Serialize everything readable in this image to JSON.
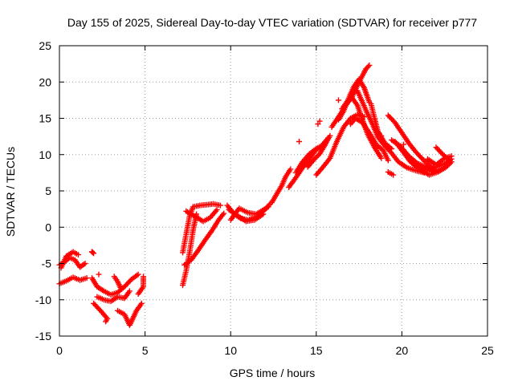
{
  "chart_data": {
    "type": "scatter",
    "title": "Day 155 of 2025, Sidereal Day-to-day VTEC variation (SDTVAR) for receiver p777",
    "xlabel": "GPS time / hours",
    "ylabel": "SDTVAR / TECUs",
    "xlim": [
      0,
      25
    ],
    "ylim": [
      -15,
      25
    ],
    "xticks": [
      0,
      5,
      10,
      15,
      20,
      25
    ],
    "yticks": [
      -15,
      -10,
      -5,
      0,
      5,
      10,
      15,
      20,
      25
    ],
    "grid": true,
    "marker": "plus",
    "series": [
      {
        "color": "#ff0000",
        "tracks": [
          [
            [
              0.0,
              -5.2
            ],
            [
              0.3,
              -4.8
            ],
            [
              0.6,
              -4.2
            ],
            [
              0.9,
              -4.5
            ],
            [
              1.2,
              -5.5
            ],
            [
              1.5,
              -5.0
            ]
          ],
          [
            [
              0.0,
              -7.8
            ],
            [
              0.4,
              -7.4
            ],
            [
              0.8,
              -6.9
            ],
            [
              1.2,
              -7.3
            ],
            [
              1.6,
              -7.0
            ]
          ],
          [
            [
              0.1,
              -5.6
            ],
            [
              0.4,
              -4.0
            ],
            [
              0.8,
              -3.4
            ],
            [
              1.1,
              -3.8
            ]
          ],
          [
            [
              1.9,
              -3.4
            ],
            [
              2.0,
              -3.6
            ]
          ],
          [
            [
              1.9,
              -7.0
            ],
            [
              2.2,
              -8.2
            ],
            [
              2.6,
              -8.8
            ],
            [
              3.0,
              -9.3
            ],
            [
              3.4,
              -9.0
            ],
            [
              3.8,
              -8.2
            ],
            [
              4.2,
              -7.2
            ],
            [
              4.6,
              -6.5
            ]
          ],
          [
            [
              2.0,
              -10.5
            ],
            [
              2.4,
              -11.5
            ],
            [
              2.8,
              -12.6
            ],
            [
              2.7,
              -13.0
            ]
          ],
          [
            [
              2.2,
              -9.6
            ],
            [
              2.6,
              -10.0
            ],
            [
              3.0,
              -10.2
            ],
            [
              3.4,
              -9.6
            ],
            [
              3.8,
              -9.8
            ],
            [
              4.1,
              -8.8
            ]
          ],
          [
            [
              3.2,
              -6.8
            ],
            [
              3.4,
              -7.5
            ],
            [
              3.6,
              -8.5
            ]
          ],
          [
            [
              3.4,
              -11.5
            ],
            [
              3.8,
              -12.0
            ],
            [
              4.1,
              -13.5
            ],
            [
              4.3,
              -12.5
            ],
            [
              4.5,
              -11.5
            ],
            [
              4.8,
              -10.5
            ]
          ],
          [
            [
              4.6,
              -9.2
            ],
            [
              4.9,
              -8.2
            ],
            [
              4.9,
              -6.8
            ]
          ],
          [
            [
              7.2,
              -8.0
            ],
            [
              7.4,
              -6.0
            ],
            [
              7.6,
              -3.5
            ],
            [
              7.8,
              -0.5
            ],
            [
              8.0,
              1.8
            ]
          ],
          [
            [
              7.3,
              -5.2
            ],
            [
              7.7,
              -4.5
            ],
            [
              8.1,
              -3.2
            ],
            [
              8.5,
              -1.8
            ],
            [
              8.9,
              -0.5
            ],
            [
              9.3,
              1.0
            ],
            [
              9.6,
              1.9
            ]
          ],
          [
            [
              7.2,
              -3.5
            ],
            [
              7.4,
              -1.0
            ],
            [
              7.6,
              1.5
            ],
            [
              7.8,
              2.8
            ],
            [
              8.2,
              3.0
            ],
            [
              8.6,
              3.1
            ],
            [
              9.0,
              3.2
            ],
            [
              9.4,
              3.0
            ]
          ],
          [
            [
              7.4,
              2.2
            ],
            [
              7.9,
              1.5
            ],
            [
              8.4,
              0.8
            ],
            [
              8.8,
              1.3
            ],
            [
              9.2,
              2.4
            ]
          ],
          [
            [
              9.8,
              3.0
            ],
            [
              10.2,
              1.8
            ],
            [
              10.6,
              1.2
            ],
            [
              11.0,
              1.0
            ],
            [
              11.5,
              1.4
            ],
            [
              12.0,
              2.4
            ],
            [
              12.3,
              3.2
            ]
          ],
          [
            [
              9.9,
              2.4
            ],
            [
              10.4,
              1.6
            ],
            [
              10.9,
              0.8
            ],
            [
              11.4,
              1.0
            ],
            [
              11.9,
              1.8
            ]
          ],
          [
            [
              10.0,
              1.0
            ],
            [
              10.5,
              2.6
            ],
            [
              11.0,
              2.0
            ],
            [
              11.5,
              1.8
            ],
            [
              12.2,
              2.8
            ]
          ],
          [
            [
              12.4,
              3.4
            ],
            [
              12.7,
              4.6
            ],
            [
              13.0,
              5.8
            ],
            [
              13.2,
              6.9
            ],
            [
              13.5,
              8.0
            ]
          ],
          [
            [
              13.4,
              5.5
            ],
            [
              13.8,
              6.8
            ],
            [
              14.2,
              8.2
            ],
            [
              14.6,
              9.4
            ],
            [
              15.0,
              10.7
            ],
            [
              15.4,
              11.2
            ]
          ],
          [
            [
              13.8,
              7.5
            ],
            [
              14.2,
              9.0
            ],
            [
              14.6,
              10.1
            ],
            [
              15.0,
              10.8
            ],
            [
              15.3,
              11.2
            ],
            [
              15.7,
              12.3
            ]
          ],
          [
            [
              14.5,
              8.3
            ],
            [
              14.9,
              9.4
            ],
            [
              15.2,
              10.1
            ],
            [
              15.5,
              11.3
            ],
            [
              15.8,
              12.6
            ]
          ],
          [
            [
              15.0,
              7.2
            ],
            [
              15.4,
              8.3
            ],
            [
              15.8,
              9.5
            ],
            [
              16.2,
              11.8
            ],
            [
              16.6,
              13.8
            ],
            [
              17.0,
              15.0
            ],
            [
              17.4,
              15.5
            ],
            [
              17.8,
              15.2
            ]
          ],
          [
            [
              15.9,
              13.8
            ],
            [
              16.3,
              15.2
            ],
            [
              16.7,
              16.7
            ],
            [
              17.1,
              18.0
            ],
            [
              17.5,
              20.0
            ],
            [
              17.9,
              21.8
            ],
            [
              18.1,
              22.3
            ]
          ],
          [
            [
              16.3,
              14.8
            ],
            [
              16.6,
              16.0
            ],
            [
              16.9,
              17.8
            ],
            [
              17.2,
              19.4
            ],
            [
              17.5,
              20.4
            ],
            [
              17.8,
              19.2
            ],
            [
              18.1,
              17.2
            ]
          ],
          [
            [
              16.5,
              16.3
            ],
            [
              16.8,
              17.3
            ],
            [
              17.1,
              17.8
            ],
            [
              17.4,
              16.8
            ],
            [
              17.7,
              14.8
            ],
            [
              18.0,
              12.8
            ],
            [
              18.4,
              11.0
            ],
            [
              18.8,
              9.5
            ]
          ],
          [
            [
              17.0,
              14.2
            ],
            [
              17.3,
              15.0
            ],
            [
              17.7,
              14.4
            ],
            [
              18.1,
              13.0
            ],
            [
              18.5,
              11.4
            ],
            [
              18.9,
              10.6
            ],
            [
              19.2,
              9.2
            ]
          ],
          [
            [
              17.4,
              18.8
            ],
            [
              17.7,
              17.2
            ],
            [
              18.0,
              15.6
            ],
            [
              18.3,
              14.1
            ],
            [
              18.6,
              12.4
            ],
            [
              19.0,
              11.2
            ],
            [
              19.4,
              10.2
            ],
            [
              19.8,
              9.0
            ],
            [
              20.3,
              8.2
            ],
            [
              20.8,
              7.8
            ],
            [
              21.3,
              7.5
            ]
          ],
          [
            [
              18.2,
              17.0
            ],
            [
              18.4,
              15.0
            ],
            [
              18.6,
              13.2
            ],
            [
              19.0,
              11.6
            ],
            [
              19.4,
              10.8
            ]
          ],
          [
            [
              19.2,
              15.4
            ],
            [
              19.6,
              14.4
            ],
            [
              20.0,
              13.0
            ],
            [
              20.4,
              11.6
            ],
            [
              20.8,
              10.4
            ],
            [
              21.2,
              9.4
            ],
            [
              21.6,
              8.5
            ],
            [
              22.0,
              7.8
            ]
          ],
          [
            [
              19.4,
              12.0
            ],
            [
              19.9,
              11.2
            ],
            [
              20.4,
              9.8
            ],
            [
              20.9,
              8.8
            ],
            [
              21.4,
              8.3
            ],
            [
              21.9,
              7.6
            ],
            [
              22.3,
              8.0
            ]
          ],
          [
            [
              19.6,
              11.8
            ],
            [
              20.0,
              10.6
            ],
            [
              20.5,
              9.3
            ],
            [
              21.0,
              8.4
            ],
            [
              21.5,
              7.8
            ],
            [
              22.0,
              8.3
            ],
            [
              22.5,
              8.7
            ],
            [
              22.9,
              9.4
            ]
          ],
          [
            [
              20.0,
              10.6
            ],
            [
              20.5,
              9.0
            ],
            [
              21.0,
              8.0
            ],
            [
              21.6,
              7.2
            ],
            [
              22.1,
              7.6
            ],
            [
              22.6,
              8.3
            ],
            [
              22.9,
              9.0
            ]
          ],
          [
            [
              21.5,
              9.4
            ],
            [
              22.0,
              8.6
            ],
            [
              22.5,
              9.5
            ],
            [
              22.9,
              9.8
            ]
          ],
          [
            [
              22.0,
              11.0
            ],
            [
              22.4,
              10.0
            ],
            [
              22.8,
              9.2
            ]
          ],
          [
            [
              19.2,
              7.6
            ],
            [
              19.5,
              7.2
            ]
          ]
        ],
        "points": [
          [
            15.2,
            14.6
          ],
          [
            15.1,
            14.2
          ],
          [
            14.0,
            11.8
          ],
          [
            18.8,
            12.6
          ],
          [
            18.6,
            13.0
          ],
          [
            20.1,
            11.4
          ],
          [
            18.9,
            11.8
          ],
          [
            1.9,
            -3.4
          ],
          [
            2.3,
            -6.5
          ],
          [
            16.3,
            17.5
          ]
        ]
      }
    ]
  }
}
